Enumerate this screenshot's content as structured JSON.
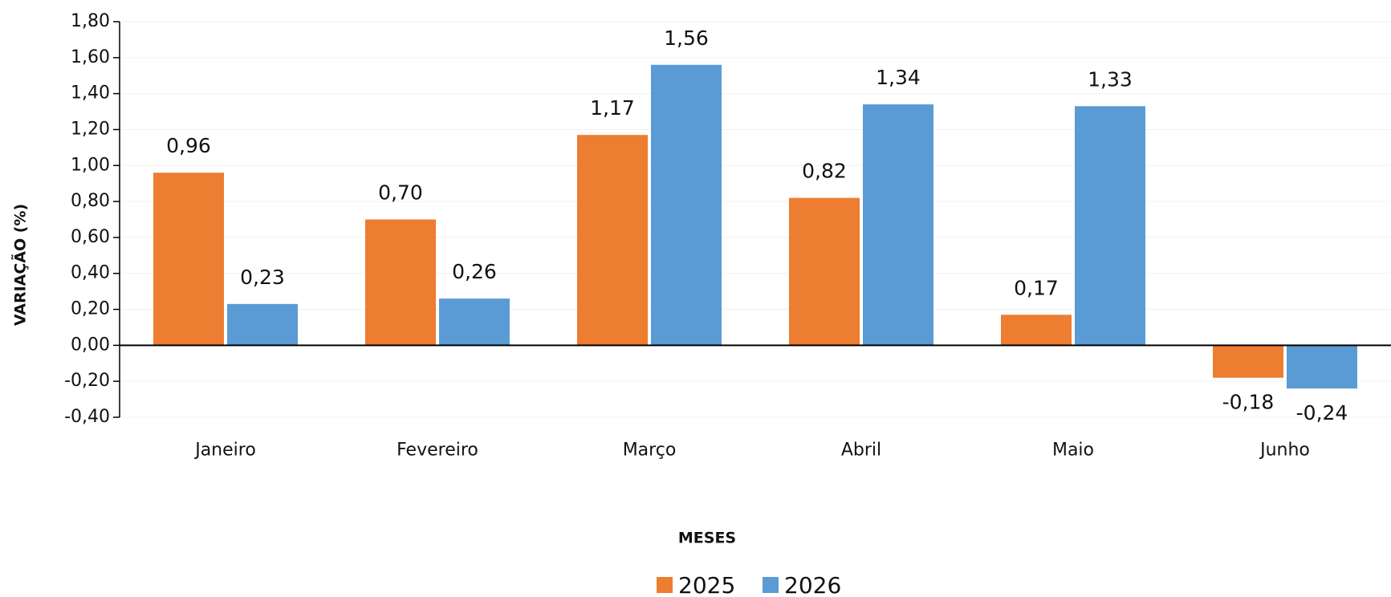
{
  "chart_data": {
    "type": "bar",
    "categories": [
      "Janeiro",
      "Fevereiro",
      "Março",
      "Abril",
      "Maio",
      "Junho"
    ],
    "series": [
      {
        "name": "2025",
        "color": "#ed7d31",
        "values": [
          0.96,
          0.7,
          1.17,
          0.82,
          0.17,
          -0.18
        ],
        "value_labels": [
          "0,96",
          "0,70",
          "1,17",
          "0,82",
          "0,17",
          "-0,18"
        ]
      },
      {
        "name": "2026",
        "color": "#5b9bd5",
        "values": [
          0.23,
          0.26,
          1.56,
          1.34,
          1.33,
          -0.24
        ],
        "value_labels": [
          "0,23",
          "0,26",
          "1,56",
          "1,34",
          "1,33",
          "-0,24"
        ]
      }
    ],
    "ylim": [
      -0.4,
      1.8
    ],
    "yticks": [
      {
        "value": -0.4,
        "label": "-0,40"
      },
      {
        "value": -0.2,
        "label": "-0,20"
      },
      {
        "value": 0,
        "label": "0,00"
      },
      {
        "value": 0.2,
        "label": "0,20"
      },
      {
        "value": 0.4,
        "label": "0,40"
      },
      {
        "value": 0.6,
        "label": "0,60"
      },
      {
        "value": 0.8,
        "label": "0,80"
      },
      {
        "value": 1.0,
        "label": "1,00"
      },
      {
        "value": 1.2,
        "label": "1,20"
      },
      {
        "value": 1.4,
        "label": "1,40"
      },
      {
        "value": 1.6,
        "label": "1,60"
      },
      {
        "value": 1.8,
        "label": "1,80"
      }
    ],
    "xlabel": "MESES",
    "ylabel": "VARIAÇÃO (%)",
    "grid": true,
    "legend": "bottom"
  }
}
